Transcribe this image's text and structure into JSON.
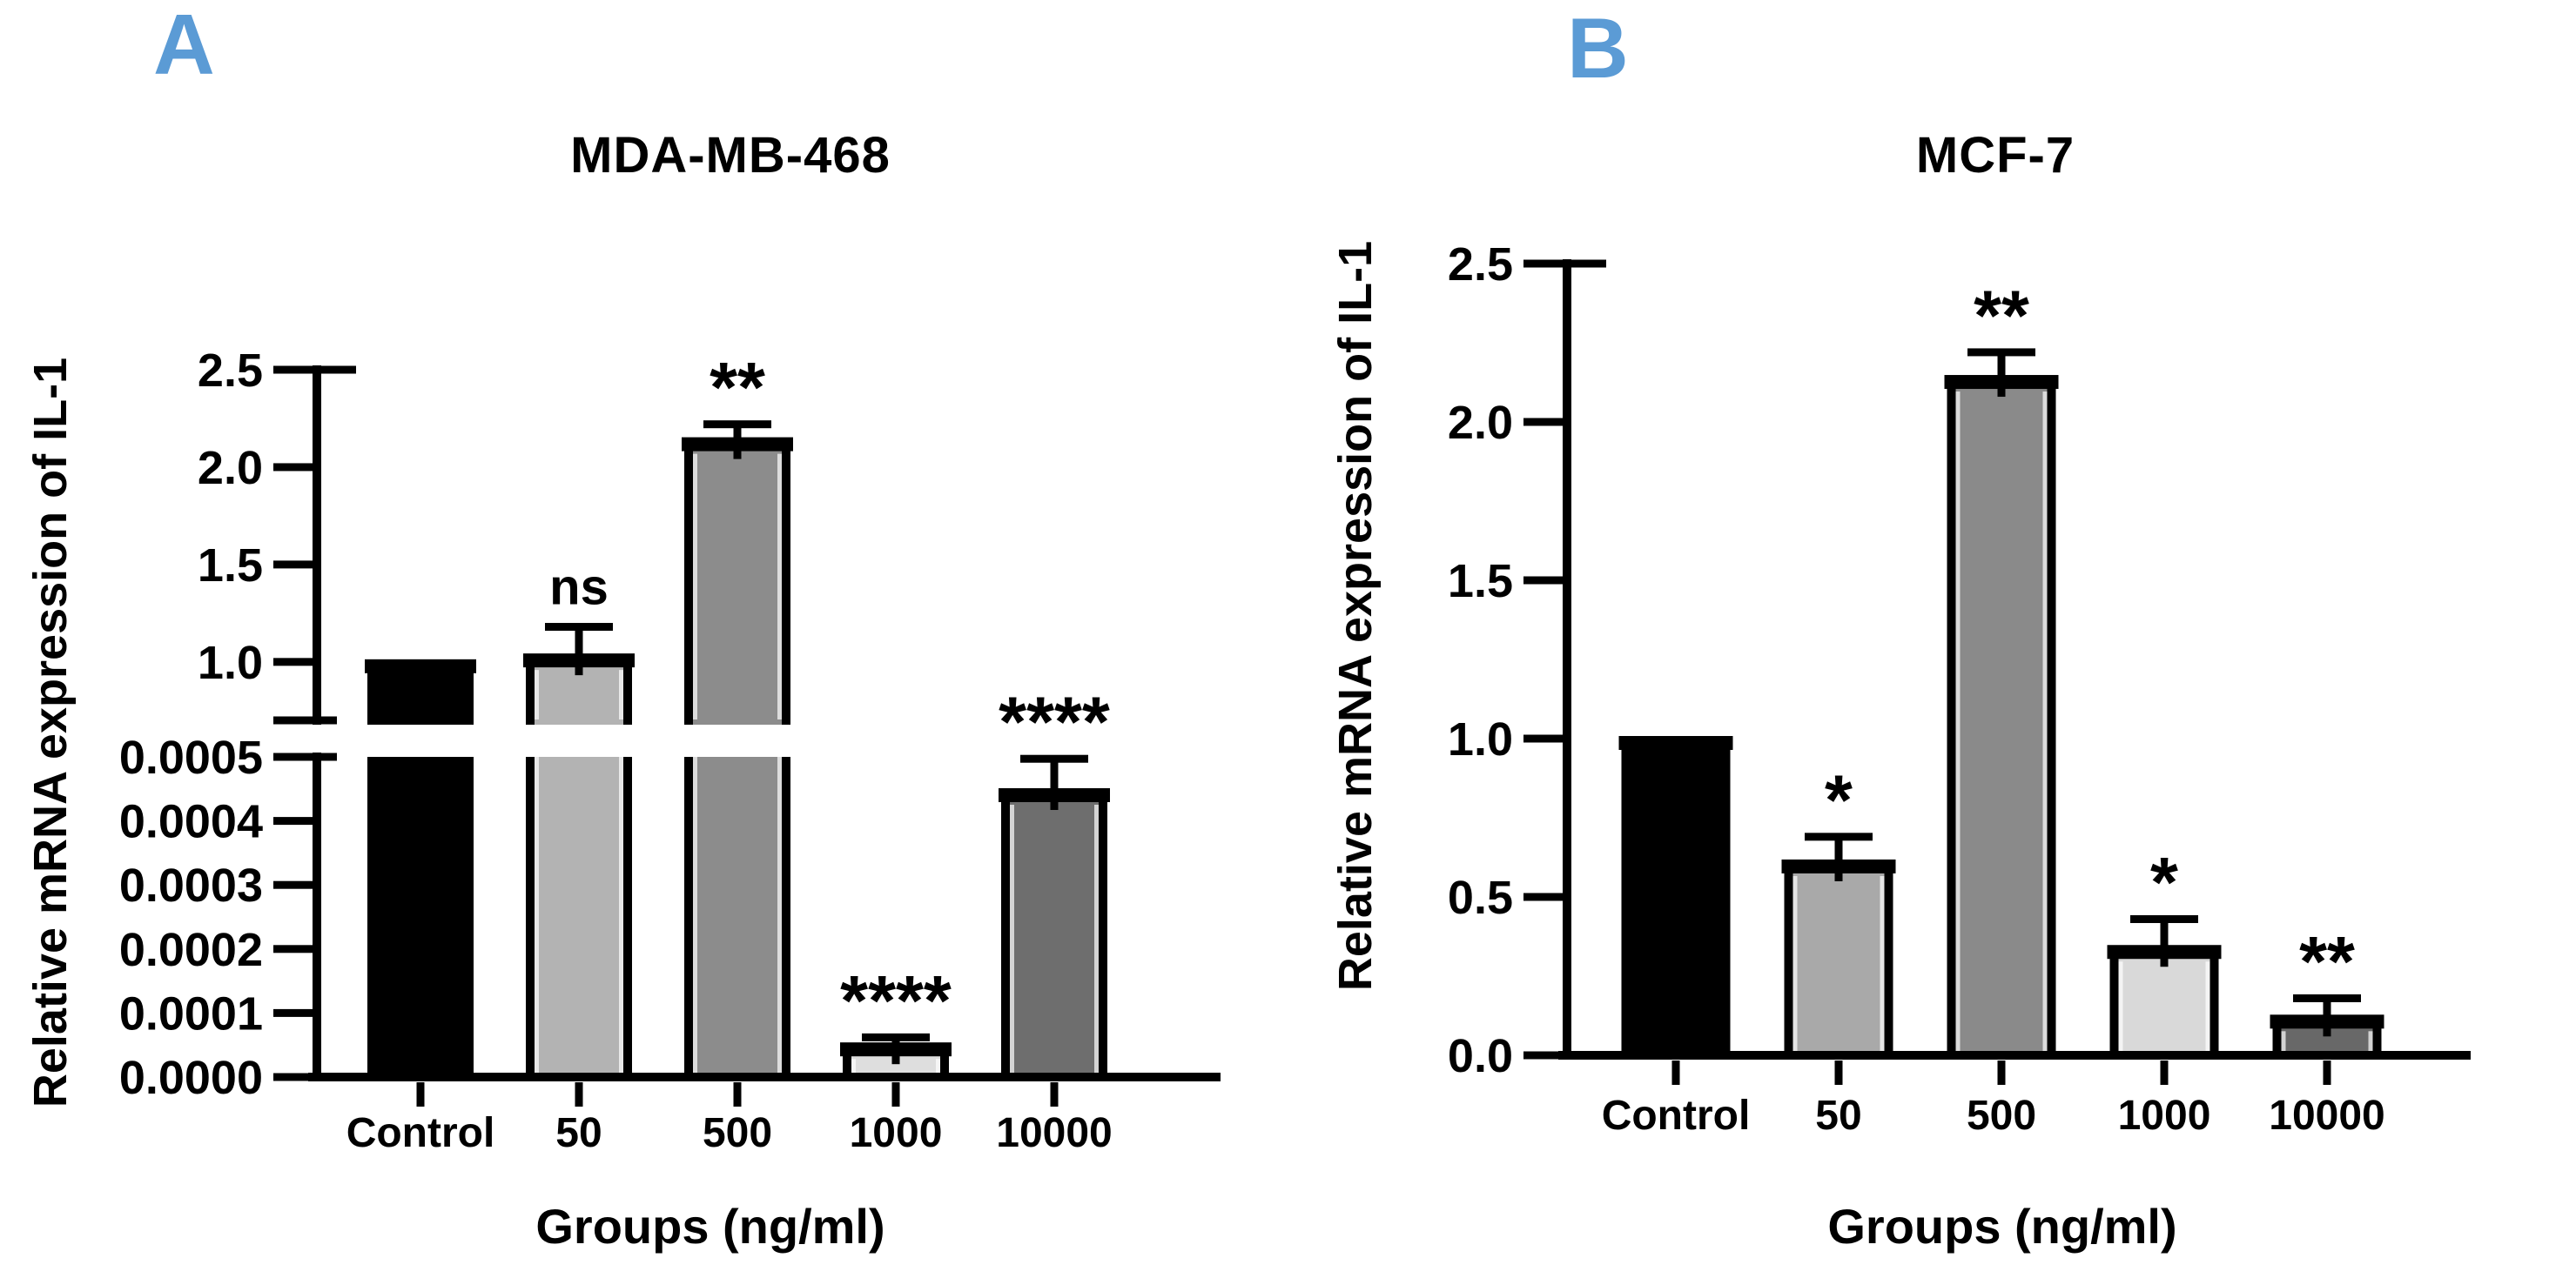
{
  "page": {
    "background": "#ffffff"
  },
  "colors": {
    "panel_letter": "#5b9bd5",
    "axis": "#000000",
    "text": "#000000",
    "bar_outline": "#000000"
  },
  "chart_data": [
    {
      "type": "bar",
      "panel_letter": "A",
      "title": "MDA-MB-468",
      "xlabel": "Groups (ng/ml)",
      "ylabel": "Relative mRNA expression of IL-1",
      "categories": [
        "Control",
        "50",
        "500",
        "1000",
        "10000"
      ],
      "values": [
        1.0,
        1.03,
        2.14,
        5e-05,
        0.000447
      ],
      "error_top": [
        null,
        1.18,
        2.22,
        6.2e-05,
        0.000497
      ],
      "annotations": [
        "",
        "ns",
        "**",
        "****",
        "****"
      ],
      "bar_colors": [
        "#000000",
        "#b3b3b3",
        "#8c8c8c",
        "#dedede",
        "#6e6e6e"
      ],
      "axis_break": true,
      "grid": false,
      "legend": null,
      "upper_axis": {
        "range": [
          0.7,
          2.5
        ],
        "tick_labels": [
          "1.0",
          "1.5",
          "2.0",
          "2.5"
        ]
      },
      "lower_axis": {
        "range": [
          0,
          0.0005
        ],
        "tick_labels": [
          "0.0000",
          "0.0001",
          "0.0002",
          "0.0003",
          "0.0004",
          "0.0005"
        ]
      }
    },
    {
      "type": "bar",
      "panel_letter": "B",
      "title": "MCF-7",
      "xlabel": "Groups (ng/ml)",
      "ylabel": "Relative mRNA expression of IL-1",
      "categories": [
        "Control",
        "50",
        "500",
        "1000",
        "10000"
      ],
      "values": [
        1.0,
        0.61,
        2.14,
        0.34,
        0.12
      ],
      "error_top": [
        null,
        0.69,
        2.22,
        0.43,
        0.18
      ],
      "annotations": [
        "",
        "*",
        "**",
        "*",
        "**"
      ],
      "bar_colors": [
        "#000000",
        "#a9a9a9",
        "#8a8a8a",
        "#d9d9d9",
        "#686868"
      ],
      "axis_break": false,
      "grid": false,
      "legend": null,
      "axis": {
        "range": [
          0,
          2.5
        ],
        "tick_labels": [
          "0.0",
          "0.5",
          "1.0",
          "1.5",
          "2.0",
          "2.5"
        ]
      }
    }
  ]
}
